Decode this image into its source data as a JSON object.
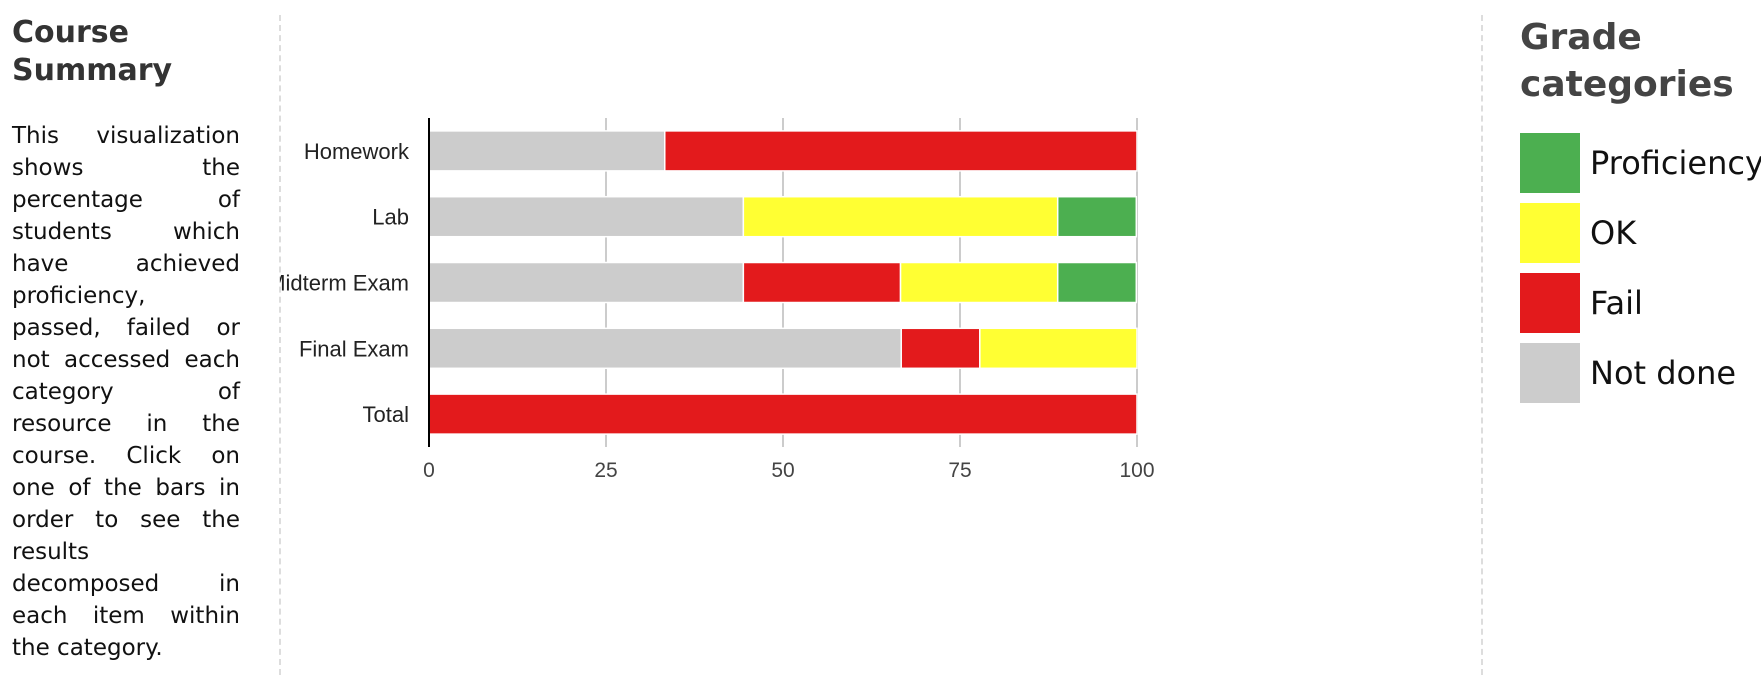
{
  "summary": {
    "title": "Course Summary",
    "description": "This visualization shows the percentage of students which have achieved proficiency, passed, failed or not accessed each category of resource in the course. Click on one of the bars in order to see the results decomposed in each item within the category."
  },
  "legend": {
    "title": "Grade categories",
    "items": [
      {
        "label": "Proficiency",
        "color": "#4caf50"
      },
      {
        "label": "OK",
        "color": "#ffff33"
      },
      {
        "label": "Fail",
        "color": "#e31a1c"
      },
      {
        "label": "Not done",
        "color": "#cccccc"
      }
    ]
  },
  "chart_data": {
    "type": "bar",
    "orientation": "horizontal",
    "stacked": true,
    "categories": [
      "Homework",
      "Lab",
      "Midterm Exam",
      "Final Exam",
      "Total"
    ],
    "series": [
      {
        "name": "Not done",
        "color": "#cccccc",
        "values": [
          33.3,
          44.4,
          44.4,
          66.7,
          0
        ]
      },
      {
        "name": "Fail",
        "color": "#e31a1c",
        "values": [
          66.7,
          0,
          22.2,
          11.1,
          100
        ]
      },
      {
        "name": "OK",
        "color": "#ffff33",
        "values": [
          0,
          44.4,
          22.2,
          22.2,
          0
        ]
      },
      {
        "name": "Proficiency",
        "color": "#4caf50",
        "values": [
          0,
          11.1,
          11.1,
          0,
          0
        ]
      }
    ],
    "xlim": [
      0,
      100
    ],
    "xticks": [
      0,
      25,
      50,
      75,
      100
    ],
    "grid": true,
    "legend_placement": "right"
  }
}
